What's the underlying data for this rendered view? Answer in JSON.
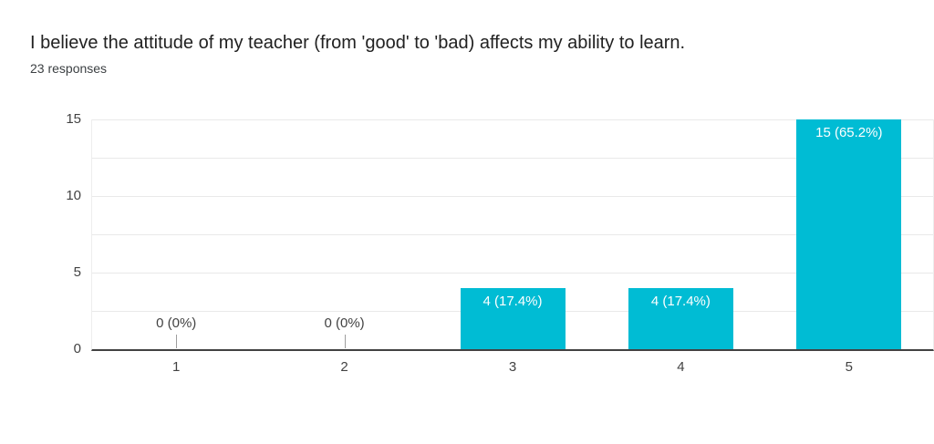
{
  "header": {
    "title": "I believe the attitude of my teacher (from 'good' to 'bad) affects my ability to learn.",
    "subtitle": "23 responses"
  },
  "chart_data": {
    "type": "bar",
    "title": "I believe the attitude of my teacher (from 'good' to 'bad) affects my ability to learn.",
    "subtitle": "23 responses",
    "categories": [
      "1",
      "2",
      "3",
      "4",
      "5"
    ],
    "values": [
      0,
      0,
      4,
      4,
      15
    ],
    "bar_labels": [
      "0 (0%)",
      "0 (0%)",
      "4 (17.4%)",
      "4 (17.4%)",
      "15 (65.2%)"
    ],
    "xlabel": "",
    "ylabel": "",
    "ylim": [
      0,
      15
    ],
    "ytick_labels": [
      "0",
      "5",
      "10",
      "15"
    ],
    "ytick_values": [
      0,
      5,
      10,
      15
    ],
    "gridline_values": [
      2.5,
      5,
      7.5,
      10,
      12.5,
      15
    ],
    "grid": true,
    "legend_position": "none",
    "colors": {
      "bar": "#00BCD4",
      "bar_label_text": "#FFFFFF",
      "zero_label_text": "#424242",
      "axis_text": "#424242",
      "gridline": "#E9E9E9",
      "axis_line": "#424242",
      "callout_line": "#9E9E9E",
      "title_text": "#212121",
      "subtitle_text": "#3C4043",
      "background": "#FFFFFF"
    }
  }
}
